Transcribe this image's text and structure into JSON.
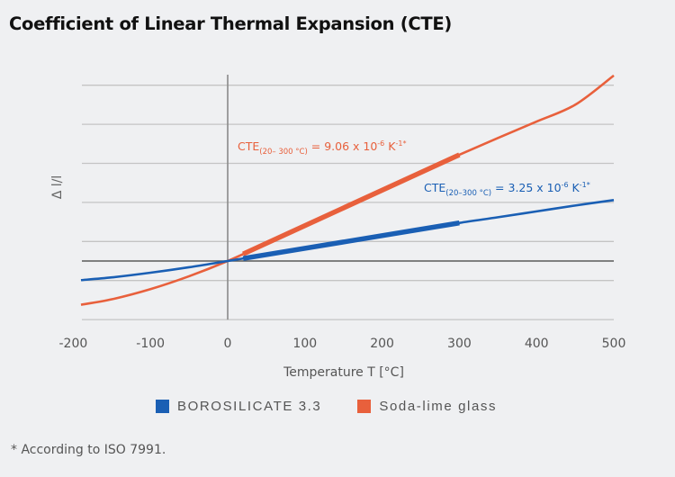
{
  "page": {
    "title": "Coefficient of Linear Thermal Expansion (CTE)",
    "footnote": "* According to ISO 7991."
  },
  "chart_data": {
    "type": "line",
    "title": "Coefficient of Linear Thermal Expansion (CTE)",
    "xlabel": "Temperature T [°C]",
    "ylabel": "Δ l/l",
    "y_units_note": "Δl/l in units of 10^-3 (no y tick labels shown)",
    "xlim": [
      -200,
      500
    ],
    "ylim": [
      -1.5,
      4.5
    ],
    "x_ticks": [
      -200,
      -100,
      0,
      100,
      200,
      300,
      400,
      500
    ],
    "x_tick_labels": [
      "-200",
      "-100",
      "0",
      "100",
      "200",
      "300",
      "400",
      "500"
    ],
    "y_gridlines": [
      -1.5,
      -0.5,
      0,
      0.5,
      1.5,
      2.5,
      3.5,
      4.5
    ],
    "grid": true,
    "legend_position": "bottom",
    "series": [
      {
        "name": "BOROSILICATE 3.3",
        "color": "#1a5fb4",
        "x": [
          -190,
          -150,
          -100,
          -50,
          0,
          50,
          100,
          150,
          200,
          250,
          300,
          350,
          400,
          450,
          500
        ],
        "values": [
          -0.49,
          -0.42,
          -0.3,
          -0.16,
          0,
          0.16,
          0.32,
          0.49,
          0.65,
          0.81,
          0.975,
          1.12,
          1.27,
          1.42,
          1.56
        ],
        "highlight_range": [
          20,
          300
        ],
        "annotation": {
          "prefix": "CTE",
          "sub": "(20–300 °C)",
          "text": " = 3.25 x 10",
          "exp": "-6",
          "unit": " K",
          "unit_exp": "-1",
          "suffix": "*"
        }
      },
      {
        "name": "Soda-lime glass",
        "color": "#e8603c",
        "x": [
          -190,
          -150,
          -100,
          -50,
          0,
          50,
          100,
          150,
          200,
          250,
          300,
          350,
          400,
          450,
          500
        ],
        "values": [
          -1.12,
          -0.98,
          -0.72,
          -0.39,
          0,
          0.45,
          0.9,
          1.36,
          1.81,
          2.27,
          2.72,
          3.15,
          3.57,
          4.0,
          4.75
        ],
        "highlight_range": [
          20,
          300
        ],
        "annotation": {
          "prefix": "CTE",
          "sub": "(20– 300 °C)",
          "text": " = 9.06 x 10",
          "exp": "-6",
          "unit": " K",
          "unit_exp": "-1",
          "suffix": "*"
        }
      }
    ]
  }
}
